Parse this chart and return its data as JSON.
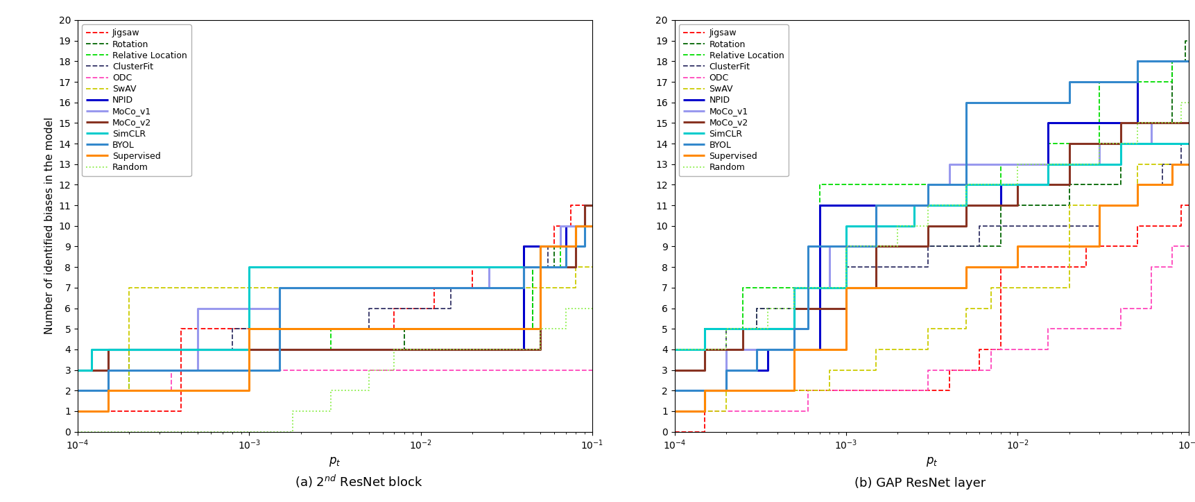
{
  "series_styles": {
    "Jigsaw": {
      "color": "#FF0000",
      "linestyle": "--",
      "linewidth": 1.3
    },
    "Rotation": {
      "color": "#006400",
      "linestyle": "--",
      "linewidth": 1.3
    },
    "Relative Location": {
      "color": "#00DD00",
      "linestyle": "--",
      "linewidth": 1.3
    },
    "ClusterFit": {
      "color": "#333366",
      "linestyle": "--",
      "linewidth": 1.3
    },
    "ODC": {
      "color": "#FF44BB",
      "linestyle": "--",
      "linewidth": 1.3
    },
    "SwAV": {
      "color": "#CCCC00",
      "linestyle": "--",
      "linewidth": 1.3
    },
    "NPID": {
      "color": "#0000CC",
      "linestyle": "-",
      "linewidth": 2.2
    },
    "MoCo_v1": {
      "color": "#9999EE",
      "linestyle": "-",
      "linewidth": 2.2
    },
    "MoCo_v2": {
      "color": "#883322",
      "linestyle": "-",
      "linewidth": 2.2
    },
    "SimCLR": {
      "color": "#00CCCC",
      "linestyle": "-",
      "linewidth": 2.2
    },
    "BYOL": {
      "color": "#3388CC",
      "linestyle": "-",
      "linewidth": 2.2
    },
    "Supervised": {
      "color": "#FF8800",
      "linestyle": "-",
      "linewidth": 2.2
    },
    "Random": {
      "color": "#88EE44",
      "linestyle": ":",
      "linewidth": 1.3
    }
  },
  "plot_a": {
    "Jigsaw": [
      [
        0.0001,
        0.0004,
        0.0004,
        0.007,
        0.007,
        0.012,
        0.012,
        0.02,
        0.02,
        0.04,
        0.04,
        0.06,
        0.06,
        0.075,
        0.075,
        0.1
      ],
      [
        1,
        1,
        5,
        5,
        6,
        6,
        7,
        7,
        8,
        8,
        9,
        9,
        10,
        10,
        11,
        11
      ]
    ],
    "Rotation": [
      [
        0.0001,
        0.0002,
        0.0002,
        0.008,
        0.008,
        0.045,
        0.045,
        0.06,
        0.06,
        0.08,
        0.08,
        0.1
      ],
      [
        2,
        2,
        4,
        4,
        5,
        5,
        8,
        8,
        9,
        9,
        10,
        10
      ]
    ],
    "Relative Location": [
      [
        0.0001,
        0.0002,
        0.0002,
        0.0005,
        0.0005,
        0.003,
        0.003,
        0.045,
        0.045,
        0.065,
        0.065,
        0.08,
        0.08,
        0.1
      ],
      [
        2,
        2,
        3,
        3,
        4,
        4,
        5,
        5,
        8,
        8,
        9,
        9,
        10,
        10
      ]
    ],
    "ClusterFit": [
      [
        0.0001,
        0.00015,
        0.00015,
        0.0008,
        0.0008,
        0.005,
        0.005,
        0.015,
        0.015,
        0.04,
        0.04,
        0.055,
        0.055,
        0.07,
        0.07,
        0.1
      ],
      [
        3,
        3,
        4,
        4,
        5,
        5,
        6,
        6,
        7,
        7,
        8,
        8,
        9,
        9,
        10,
        10
      ]
    ],
    "ODC": [
      [
        0.0001,
        0.00035,
        0.00035,
        0.00045,
        0.00045,
        0.1
      ],
      [
        2,
        2,
        3,
        3,
        3,
        3
      ]
    ],
    "SwAV": [
      [
        0.0001,
        0.0002,
        0.0002,
        0.08,
        0.08,
        0.1
      ],
      [
        2,
        2,
        7,
        7,
        8,
        8
      ]
    ],
    "NPID": [
      [
        0.0001,
        0.00015,
        0.00015,
        0.04,
        0.04,
        0.07,
        0.07,
        0.09,
        0.09,
        0.1
      ],
      [
        3,
        3,
        4,
        4,
        9,
        9,
        10,
        10,
        11,
        11
      ]
    ],
    "MoCo_v1": [
      [
        0.0001,
        0.00015,
        0.00015,
        0.0005,
        0.0005,
        0.0015,
        0.0015,
        0.025,
        0.025,
        0.05,
        0.05,
        0.065,
        0.065,
        0.1
      ],
      [
        2,
        2,
        3,
        3,
        6,
        6,
        7,
        7,
        8,
        8,
        9,
        9,
        10,
        10
      ]
    ],
    "MoCo_v2": [
      [
        0.0001,
        0.00015,
        0.00015,
        0.05,
        0.05,
        0.08,
        0.08,
        0.09,
        0.09,
        0.1
      ],
      [
        3,
        3,
        4,
        4,
        8,
        8,
        10,
        10,
        11,
        11
      ]
    ],
    "SimCLR": [
      [
        0.0001,
        0.00012,
        0.00012,
        0.001,
        0.001,
        0.05,
        0.05,
        0.08,
        0.08,
        0.1
      ],
      [
        3,
        3,
        4,
        4,
        8,
        8,
        9,
        9,
        10,
        10
      ]
    ],
    "BYOL": [
      [
        0.0001,
        0.00015,
        0.00015,
        0.0015,
        0.0015,
        0.04,
        0.04,
        0.07,
        0.07,
        0.09,
        0.09,
        0.1
      ],
      [
        2,
        2,
        3,
        3,
        7,
        7,
        8,
        8,
        9,
        9,
        10,
        10
      ]
    ],
    "Supervised": [
      [
        0.0001,
        0.00015,
        0.00015,
        0.001,
        0.001,
        0.05,
        0.05,
        0.08,
        0.08,
        0.1
      ],
      [
        1,
        1,
        2,
        2,
        5,
        5,
        9,
        9,
        10,
        10
      ]
    ],
    "Random": [
      [
        0.0001,
        0.0018,
        0.0018,
        0.003,
        0.003,
        0.005,
        0.005,
        0.007,
        0.007,
        0.05,
        0.05,
        0.07,
        0.07,
        0.1
      ],
      [
        0,
        0,
        1,
        1,
        2,
        2,
        3,
        3,
        4,
        4,
        5,
        5,
        6,
        6
      ]
    ]
  },
  "plot_b": {
    "Jigsaw": [
      [
        0.0001,
        0.00015,
        0.00015,
        0.004,
        0.004,
        0.006,
        0.006,
        0.008,
        0.008,
        0.025,
        0.025,
        0.05,
        0.05,
        0.07,
        0.07,
        0.09,
        0.09,
        0.1
      ],
      [
        0,
        0,
        2,
        2,
        3,
        3,
        4,
        4,
        8,
        8,
        9,
        9,
        10,
        10,
        10,
        10,
        11,
        11
      ]
    ],
    "Rotation": [
      [
        0.0001,
        0.00015,
        0.00015,
        0.0003,
        0.0003,
        0.0006,
        0.0006,
        0.0015,
        0.0015,
        0.008,
        0.008,
        0.02,
        0.02,
        0.04,
        0.04,
        0.06,
        0.06,
        0.08,
        0.08,
        0.095,
        0.095,
        0.1
      ],
      [
        4,
        4,
        5,
        5,
        6,
        6,
        7,
        7,
        9,
        9,
        11,
        11,
        12,
        12,
        14,
        14,
        15,
        15,
        18,
        18,
        19,
        19
      ]
    ],
    "Relative Location": [
      [
        0.0001,
        0.00015,
        0.00015,
        0.00025,
        0.00025,
        0.0007,
        0.0007,
        0.008,
        0.008,
        0.015,
        0.015,
        0.03,
        0.03,
        0.06,
        0.06,
        0.08,
        0.08,
        0.1
      ],
      [
        4,
        4,
        5,
        5,
        7,
        7,
        12,
        12,
        13,
        13,
        14,
        14,
        17,
        17,
        17,
        17,
        18,
        18
      ]
    ],
    "ClusterFit": [
      [
        0.0001,
        0.0002,
        0.0002,
        0.0003,
        0.0003,
        0.0005,
        0.0005,
        0.001,
        0.001,
        0.003,
        0.003,
        0.006,
        0.006,
        0.03,
        0.03,
        0.05,
        0.05,
        0.07,
        0.07,
        0.09,
        0.09,
        0.1
      ],
      [
        4,
        4,
        5,
        5,
        6,
        6,
        7,
        7,
        8,
        8,
        9,
        9,
        10,
        10,
        11,
        11,
        12,
        12,
        13,
        13,
        14,
        14
      ]
    ],
    "ODC": [
      [
        0.0001,
        0.0002,
        0.0002,
        0.0006,
        0.0006,
        0.003,
        0.003,
        0.007,
        0.007,
        0.015,
        0.015,
        0.04,
        0.04,
        0.06,
        0.06,
        0.08,
        0.08,
        0.1
      ],
      [
        1,
        1,
        1,
        1,
        2,
        2,
        3,
        3,
        4,
        4,
        5,
        5,
        6,
        6,
        8,
        8,
        9,
        9
      ]
    ],
    "SwAV": [
      [
        0.0001,
        0.0002,
        0.0002,
        0.0008,
        0.0008,
        0.0015,
        0.0015,
        0.003,
        0.003,
        0.005,
        0.005,
        0.007,
        0.007,
        0.02,
        0.02,
        0.05,
        0.05,
        0.1
      ],
      [
        1,
        1,
        2,
        2,
        3,
        3,
        4,
        4,
        5,
        5,
        6,
        6,
        7,
        7,
        11,
        11,
        13,
        13
      ]
    ],
    "NPID": [
      [
        0.0001,
        0.00015,
        0.00015,
        0.0002,
        0.0002,
        0.00035,
        0.00035,
        0.0007,
        0.0007,
        0.008,
        0.008,
        0.015,
        0.015,
        0.05,
        0.05,
        0.1
      ],
      [
        1,
        1,
        2,
        2,
        3,
        3,
        4,
        4,
        11,
        11,
        12,
        12,
        15,
        15,
        18,
        18
      ]
    ],
    "MoCo_v1": [
      [
        0.0001,
        0.0002,
        0.0002,
        0.0005,
        0.0005,
        0.0008,
        0.0008,
        0.0015,
        0.0015,
        0.003,
        0.003,
        0.004,
        0.004,
        0.03,
        0.03,
        0.06,
        0.06,
        0.1
      ],
      [
        2,
        2,
        4,
        4,
        7,
        7,
        9,
        9,
        11,
        11,
        12,
        12,
        13,
        13,
        14,
        14,
        15,
        15
      ]
    ],
    "MoCo_v2": [
      [
        0.0001,
        0.00015,
        0.00015,
        0.00025,
        0.00025,
        0.0005,
        0.0005,
        0.001,
        0.001,
        0.0015,
        0.0015,
        0.003,
        0.003,
        0.005,
        0.005,
        0.01,
        0.01,
        0.02,
        0.02,
        0.04,
        0.04,
        0.1
      ],
      [
        3,
        3,
        4,
        4,
        5,
        5,
        6,
        6,
        7,
        7,
        9,
        9,
        10,
        10,
        11,
        11,
        12,
        12,
        14,
        14,
        15,
        15
      ]
    ],
    "SimCLR": [
      [
        0.0001,
        0.00015,
        0.00015,
        0.0005,
        0.0005,
        0.001,
        0.001,
        0.0025,
        0.0025,
        0.005,
        0.005,
        0.015,
        0.015,
        0.04,
        0.04,
        0.1
      ],
      [
        4,
        4,
        5,
        5,
        7,
        7,
        10,
        10,
        11,
        11,
        12,
        12,
        13,
        13,
        14,
        14
      ]
    ],
    "BYOL": [
      [
        0.0001,
        0.0002,
        0.0002,
        0.0003,
        0.0003,
        0.0005,
        0.0005,
        0.0006,
        0.0006,
        0.0015,
        0.0015,
        0.003,
        0.003,
        0.005,
        0.005,
        0.02,
        0.02,
        0.05,
        0.05,
        0.1
      ],
      [
        2,
        2,
        3,
        3,
        4,
        4,
        5,
        5,
        9,
        9,
        11,
        11,
        12,
        12,
        16,
        16,
        17,
        17,
        18,
        18
      ]
    ],
    "Supervised": [
      [
        0.0001,
        0.00015,
        0.00015,
        0.0005,
        0.0005,
        0.001,
        0.001,
        0.005,
        0.005,
        0.01,
        0.01,
        0.03,
        0.03,
        0.05,
        0.05,
        0.08,
        0.08,
        0.1
      ],
      [
        1,
        1,
        2,
        2,
        4,
        4,
        7,
        7,
        8,
        8,
        9,
        9,
        11,
        11,
        12,
        12,
        13,
        13
      ]
    ],
    "Random": [
      [
        0.0001,
        0.0002,
        0.0002,
        0.00035,
        0.00035,
        0.0005,
        0.0005,
        0.001,
        0.001,
        0.002,
        0.002,
        0.003,
        0.003,
        0.005,
        0.005,
        0.01,
        0.01,
        0.03,
        0.03,
        0.05,
        0.05,
        0.09,
        0.09,
        0.1
      ],
      [
        4,
        4,
        5,
        5,
        6,
        6,
        7,
        7,
        9,
        9,
        10,
        10,
        11,
        11,
        12,
        12,
        13,
        13,
        14,
        14,
        15,
        15,
        16,
        16
      ]
    ]
  },
  "series_order": [
    "Jigsaw",
    "Rotation",
    "Relative Location",
    "ClusterFit",
    "ODC",
    "SwAV",
    "NPID",
    "MoCo_v1",
    "MoCo_v2",
    "SimCLR",
    "BYOL",
    "Supervised",
    "Random"
  ],
  "xlabel": "$p_t$",
  "ylabel": "Number of identified biases in the model",
  "xlim": [
    0.0001,
    0.1
  ],
  "ylim": [
    0,
    20
  ],
  "yticks": [
    0,
    1,
    2,
    3,
    4,
    5,
    6,
    7,
    8,
    9,
    10,
    11,
    12,
    13,
    14,
    15,
    16,
    17,
    18,
    19,
    20
  ]
}
